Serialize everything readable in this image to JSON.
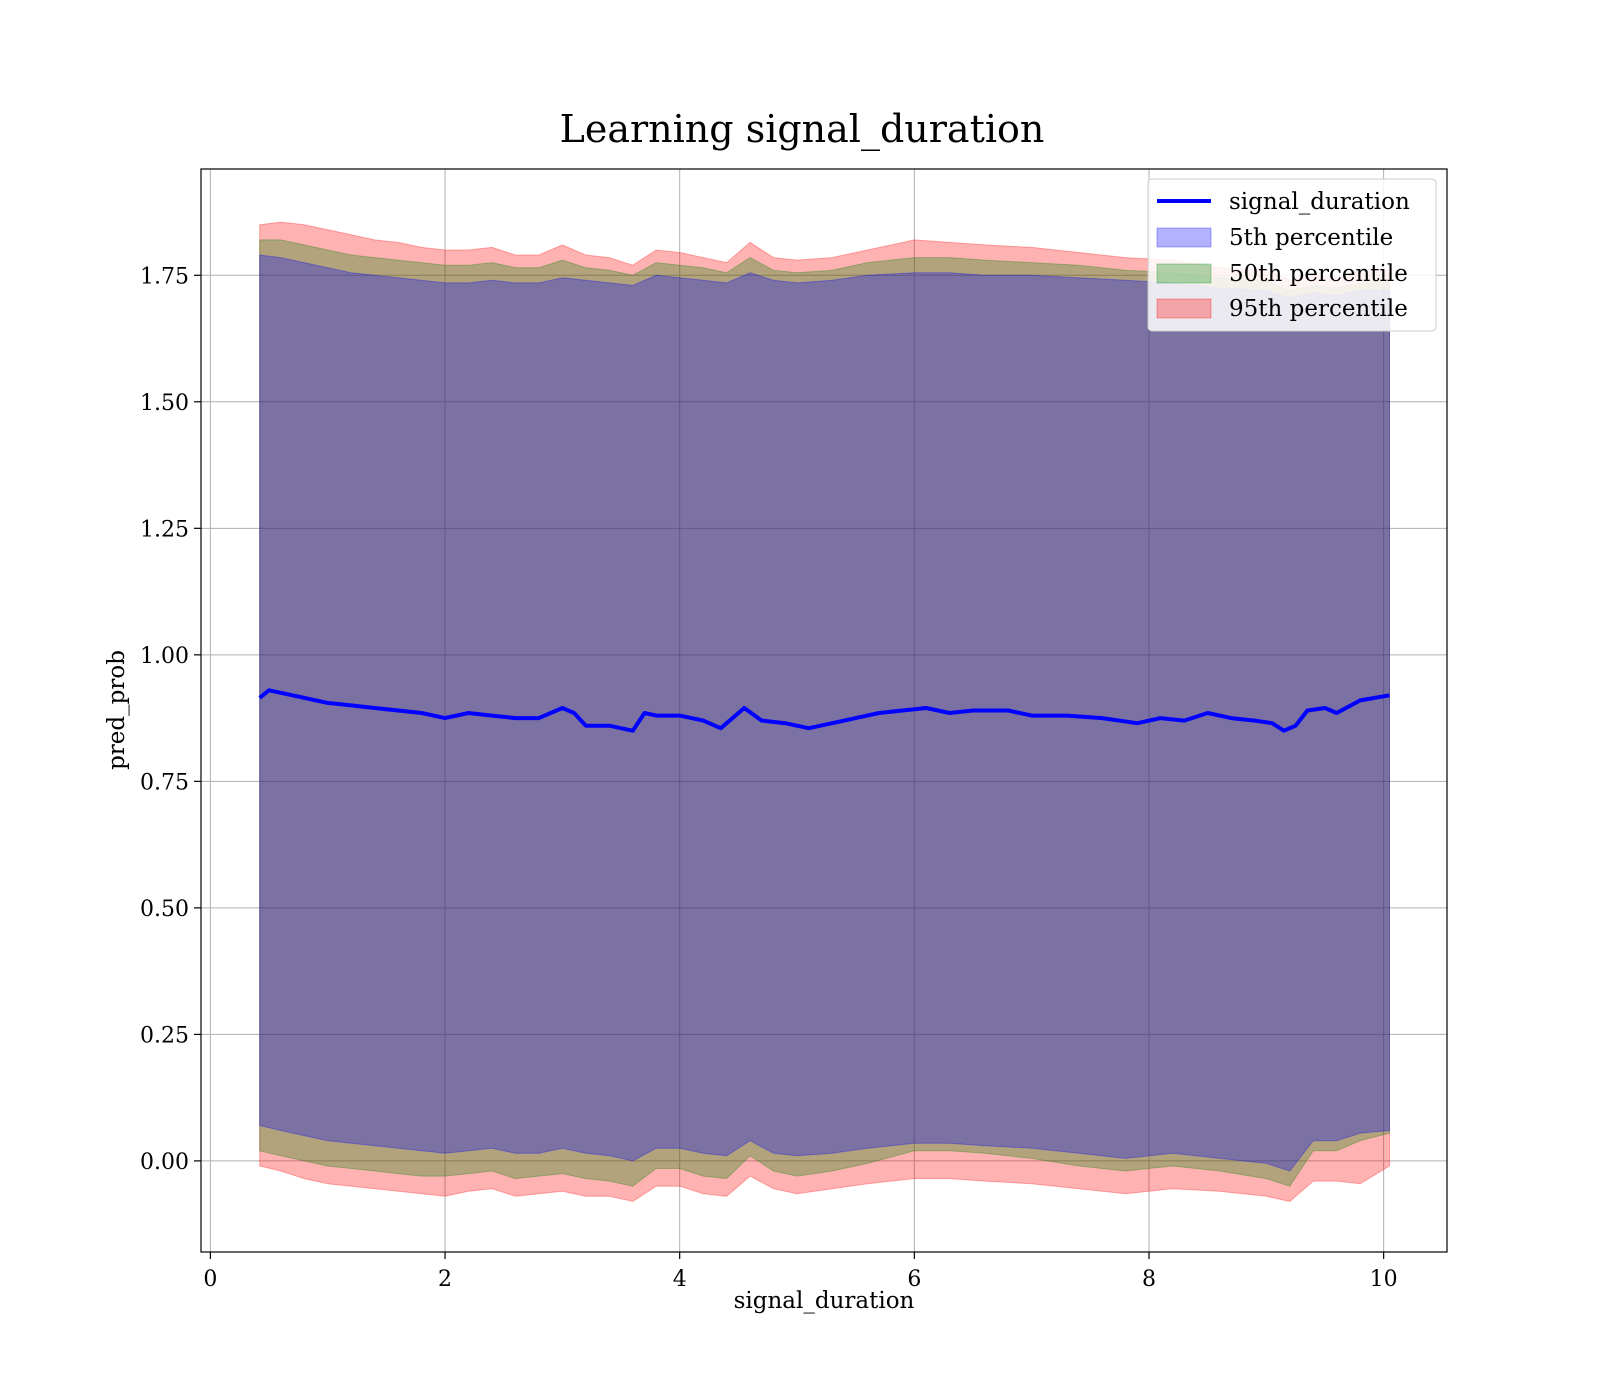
{
  "chart_data": {
    "type": "area",
    "title": "Learning signal_duration",
    "xlabel": "signal_duration",
    "ylabel": "pred_prob",
    "xlim": [
      -0.08,
      10.54
    ],
    "ylim": [
      -0.18,
      1.96
    ],
    "x_ticks": [
      0,
      2,
      4,
      6,
      8,
      10
    ],
    "x_tick_labels": [
      "0",
      "2",
      "4",
      "6",
      "8",
      "10"
    ],
    "y_ticks": [
      0.0,
      0.25,
      0.5,
      0.75,
      1.0,
      1.25,
      1.5,
      1.75
    ],
    "y_tick_labels": [
      "0.00",
      "0.25",
      "0.50",
      "0.75",
      "1.00",
      "1.25",
      "1.50",
      "1.75"
    ],
    "grid": true,
    "legend_position": "top-right",
    "legend": {
      "line": "signal_duration",
      "bands": [
        "5th percentile",
        "50th percentile",
        "95th percentile"
      ]
    },
    "line_series": {
      "name": "signal_duration",
      "color": "#0000ff",
      "x": [
        0.42,
        0.5,
        0.6,
        0.7,
        0.8,
        0.9,
        1.0,
        1.2,
        1.4,
        1.6,
        1.8,
        2.0,
        2.2,
        2.4,
        2.6,
        2.8,
        3.0,
        3.1,
        3.2,
        3.4,
        3.6,
        3.7,
        3.8,
        4.0,
        4.2,
        4.35,
        4.55,
        4.7,
        4.9,
        5.1,
        5.3,
        5.5,
        5.7,
        5.9,
        6.1,
        6.3,
        6.5,
        6.8,
        7.0,
        7.3,
        7.6,
        7.9,
        8.1,
        8.3,
        8.5,
        8.7,
        8.9,
        9.05,
        9.15,
        9.25,
        9.35,
        9.5,
        9.6,
        9.8,
        10.05
      ],
      "y": [
        0.915,
        0.93,
        0.925,
        0.92,
        0.915,
        0.91,
        0.905,
        0.9,
        0.895,
        0.89,
        0.885,
        0.875,
        0.885,
        0.88,
        0.875,
        0.875,
        0.895,
        0.885,
        0.86,
        0.86,
        0.85,
        0.885,
        0.88,
        0.88,
        0.87,
        0.855,
        0.895,
        0.87,
        0.865,
        0.855,
        0.865,
        0.875,
        0.885,
        0.89,
        0.895,
        0.885,
        0.89,
        0.89,
        0.88,
        0.88,
        0.875,
        0.865,
        0.875,
        0.87,
        0.885,
        0.875,
        0.87,
        0.865,
        0.85,
        0.86,
        0.89,
        0.895,
        0.885,
        0.91,
        0.92
      ]
    },
    "band_series": [
      {
        "name": "95th percentile",
        "color": "#ff0000",
        "opacity": 0.3,
        "x": [
          0.42,
          0.6,
          0.8,
          1.0,
          1.2,
          1.4,
          1.6,
          1.8,
          2.0,
          2.2,
          2.4,
          2.6,
          2.8,
          3.0,
          3.2,
          3.4,
          3.6,
          3.8,
          4.0,
          4.2,
          4.4,
          4.6,
          4.8,
          5.0,
          5.3,
          5.6,
          6.0,
          6.3,
          6.6,
          7.0,
          7.4,
          7.8,
          8.2,
          8.6,
          9.0,
          9.2,
          9.4,
          9.6,
          9.8,
          10.05
        ],
        "upper": [
          1.85,
          1.855,
          1.85,
          1.84,
          1.83,
          1.82,
          1.815,
          1.805,
          1.8,
          1.8,
          1.805,
          1.79,
          1.79,
          1.81,
          1.79,
          1.785,
          1.77,
          1.8,
          1.795,
          1.785,
          1.775,
          1.815,
          1.785,
          1.78,
          1.785,
          1.8,
          1.82,
          1.815,
          1.81,
          1.805,
          1.795,
          1.785,
          1.78,
          1.765,
          1.76,
          1.74,
          1.75,
          1.745,
          1.76,
          1.76
        ],
        "lower": [
          -0.01,
          -0.02,
          -0.035,
          -0.045,
          -0.05,
          -0.055,
          -0.06,
          -0.065,
          -0.07,
          -0.06,
          -0.055,
          -0.07,
          -0.065,
          -0.06,
          -0.07,
          -0.07,
          -0.08,
          -0.05,
          -0.05,
          -0.065,
          -0.07,
          -0.03,
          -0.055,
          -0.065,
          -0.055,
          -0.045,
          -0.035,
          -0.035,
          -0.04,
          -0.045,
          -0.055,
          -0.065,
          -0.055,
          -0.06,
          -0.07,
          -0.08,
          -0.04,
          -0.04,
          -0.045,
          -0.01
        ]
      },
      {
        "name": "50th percentile",
        "color": "#008000",
        "opacity": 0.3,
        "x": [
          0.42,
          0.6,
          0.8,
          1.0,
          1.2,
          1.4,
          1.6,
          1.8,
          2.0,
          2.2,
          2.4,
          2.6,
          2.8,
          3.0,
          3.2,
          3.4,
          3.6,
          3.8,
          4.0,
          4.2,
          4.4,
          4.6,
          4.8,
          5.0,
          5.3,
          5.6,
          6.0,
          6.3,
          6.6,
          7.0,
          7.4,
          7.8,
          8.2,
          8.6,
          9.0,
          9.2,
          9.4,
          9.6,
          9.8,
          10.05
        ],
        "upper": [
          1.82,
          1.82,
          1.81,
          1.8,
          1.79,
          1.785,
          1.78,
          1.775,
          1.77,
          1.77,
          1.775,
          1.765,
          1.765,
          1.78,
          1.765,
          1.76,
          1.75,
          1.775,
          1.77,
          1.765,
          1.755,
          1.785,
          1.76,
          1.755,
          1.76,
          1.775,
          1.785,
          1.785,
          1.78,
          1.775,
          1.77,
          1.76,
          1.755,
          1.745,
          1.74,
          1.72,
          1.73,
          1.725,
          1.735,
          1.735
        ],
        "lower": [
          0.02,
          0.01,
          0.0,
          -0.01,
          -0.015,
          -0.02,
          -0.025,
          -0.03,
          -0.03,
          -0.025,
          -0.02,
          -0.035,
          -0.03,
          -0.025,
          -0.035,
          -0.04,
          -0.05,
          -0.015,
          -0.015,
          -0.03,
          -0.035,
          0.01,
          -0.02,
          -0.03,
          -0.02,
          -0.005,
          0.02,
          0.02,
          0.015,
          0.005,
          -0.01,
          -0.02,
          -0.01,
          -0.02,
          -0.035,
          -0.05,
          0.02,
          0.02,
          0.04,
          0.055
        ]
      },
      {
        "name": "5th percentile",
        "color": "#0000ff",
        "opacity": 0.3,
        "x": [
          0.42,
          0.6,
          0.8,
          1.0,
          1.2,
          1.4,
          1.6,
          1.8,
          2.0,
          2.2,
          2.4,
          2.6,
          2.8,
          3.0,
          3.2,
          3.4,
          3.6,
          3.8,
          4.0,
          4.2,
          4.4,
          4.6,
          4.8,
          5.0,
          5.3,
          5.6,
          6.0,
          6.3,
          6.6,
          7.0,
          7.4,
          7.8,
          8.2,
          8.6,
          9.0,
          9.2,
          9.4,
          9.6,
          9.8,
          10.05
        ],
        "upper": [
          1.79,
          1.785,
          1.775,
          1.765,
          1.755,
          1.75,
          1.745,
          1.74,
          1.735,
          1.735,
          1.74,
          1.735,
          1.735,
          1.745,
          1.74,
          1.735,
          1.73,
          1.75,
          1.745,
          1.74,
          1.735,
          1.755,
          1.74,
          1.735,
          1.74,
          1.75,
          1.755,
          1.755,
          1.75,
          1.75,
          1.745,
          1.74,
          1.735,
          1.725,
          1.72,
          1.705,
          1.715,
          1.71,
          1.72,
          1.72
        ],
        "lower": [
          0.07,
          0.06,
          0.05,
          0.04,
          0.035,
          0.03,
          0.025,
          0.02,
          0.015,
          0.02,
          0.025,
          0.015,
          0.015,
          0.025,
          0.015,
          0.01,
          0.0,
          0.025,
          0.025,
          0.015,
          0.01,
          0.04,
          0.015,
          0.01,
          0.015,
          0.025,
          0.035,
          0.035,
          0.03,
          0.025,
          0.015,
          0.005,
          0.015,
          0.005,
          -0.005,
          -0.02,
          0.04,
          0.04,
          0.055,
          0.06
        ]
      }
    ]
  }
}
